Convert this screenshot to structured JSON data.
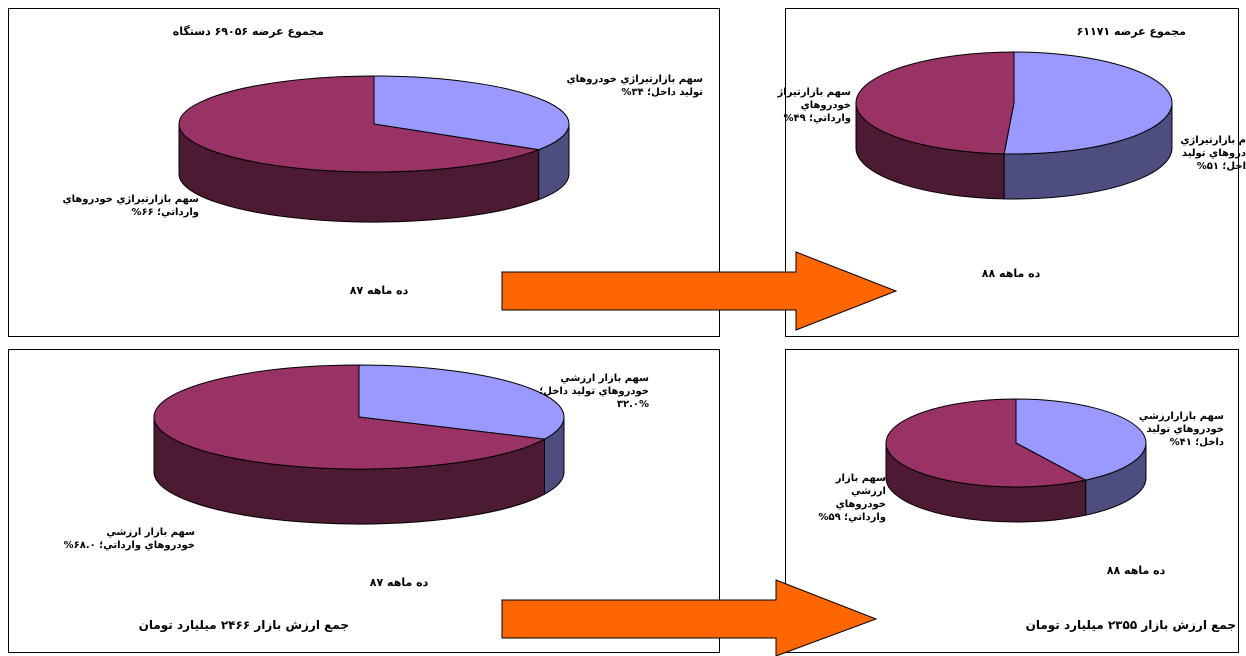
{
  "charts": [
    {
      "type": "pie",
      "title": "مجموع عرضه ۶۹۰۵۶ دستگاه",
      "period": "ده  ماهه ۸۷",
      "footer": "",
      "slices": [
        {
          "label_lines": [
            "سهم بازارتيراژي خودروهاي",
            "توليد داخل؛ ۳۴%"
          ],
          "value": 34,
          "color": "#9999ff"
        },
        {
          "label_lines": [
            "سهم بازارتيراژي خودروهاي",
            "وارداتي؛ ۶۶%"
          ],
          "value": 66,
          "color": "#993366"
        }
      ]
    },
    {
      "type": "pie",
      "title": "مجموع عرضه ۶۱۱۷۱",
      "period": "ده  ماهه ۸۸",
      "footer": "",
      "slices": [
        {
          "label_lines": [
            "م بازارتيراژي",
            "دروهاي توليد",
            "اخل؛ ۵۱%"
          ],
          "value": 51,
          "color": "#9999ff"
        },
        {
          "label_lines": [
            "سهم بازارتيراژ",
            "خودروهاي",
            "وارداتي؛ ۴۹%"
          ],
          "value": 49,
          "color": "#993366"
        }
      ]
    },
    {
      "type": "pie",
      "title": "",
      "period": "ده  ماهه ۸۷",
      "footer": "جمع ارزش بازار ۲۴۶۶ ميليارد تومان",
      "slices": [
        {
          "label_lines": [
            "سهم بازار ارزشي",
            "خودروهاي توليد داخل؛",
            "۳۲.۰%"
          ],
          "value": 32,
          "color": "#9999ff"
        },
        {
          "label_lines": [
            "سهم بازار ارزشي",
            "خودروهاي وارداتي؛ ۶۸.۰%"
          ],
          "value": 68,
          "color": "#993366"
        }
      ]
    },
    {
      "type": "pie",
      "title": "",
      "period": "ده  ماهه ۸۸",
      "footer": "جمع ارزش بازار ۲۳۵۵ ميليارد تومان",
      "slices": [
        {
          "label_lines": [
            "سهم بازارارزشي",
            "خودروهاي توليد",
            "داخل؛ ۴۱%"
          ],
          "value": 41,
          "color": "#9999ff"
        },
        {
          "label_lines": [
            "سهم بازار",
            "ارزشي",
            "خودروهاي",
            "وارداتي؛ ۵۹%"
          ],
          "value": 59,
          "color": "#993366"
        }
      ]
    }
  ],
  "colors": {
    "domestic": "#9999ff",
    "imported": "#993366",
    "arrow": "#ff6600"
  }
}
